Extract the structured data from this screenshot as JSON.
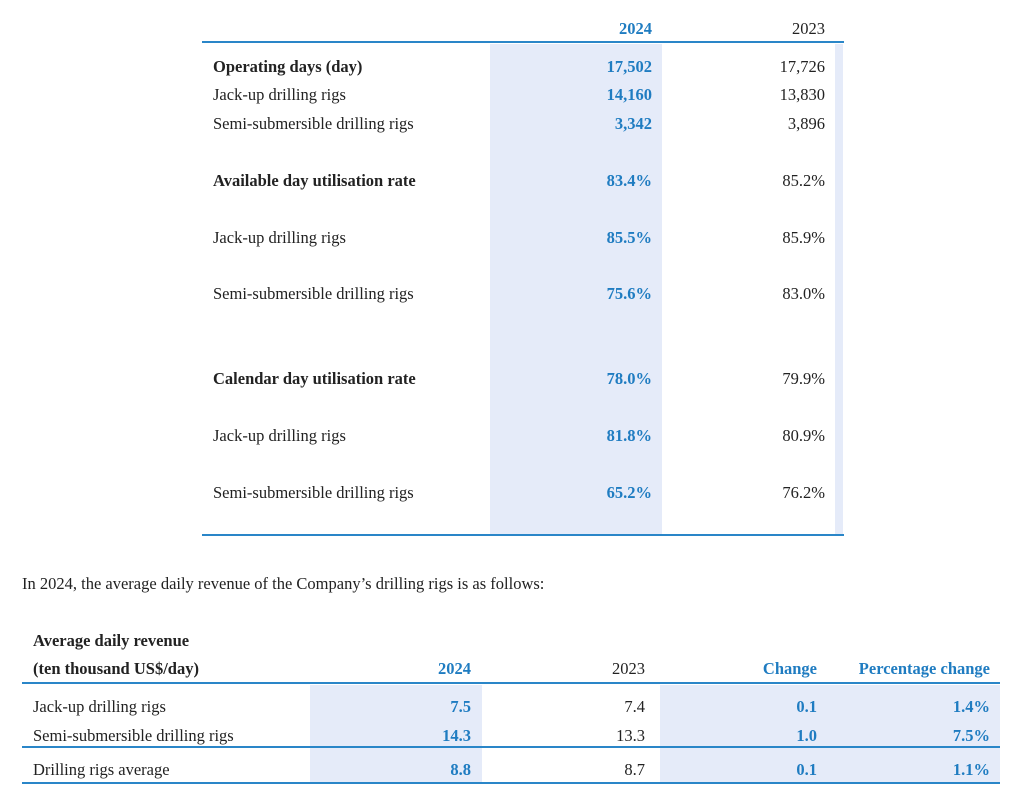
{
  "table1": {
    "headers": [
      "2024",
      "2023"
    ],
    "rows": [
      {
        "label": "Operating days (day)",
        "bold": true,
        "v2024": "17,502",
        "v2023": "17,726"
      },
      {
        "label": "Jack-up drilling rigs",
        "bold": false,
        "v2024": "14,160",
        "v2023": "13,830"
      },
      {
        "label": "Semi-submersible drilling rigs",
        "bold": false,
        "v2024": "3,342",
        "v2023": "3,896"
      },
      {
        "label": "Available day utilisation rate",
        "bold": true,
        "v2024": "83.4%",
        "v2023": "85.2%"
      },
      {
        "label": "Jack-up drilling rigs",
        "bold": false,
        "v2024": "85.5%",
        "v2023": "85.9%"
      },
      {
        "label": "Semi-submersible drilling rigs",
        "bold": false,
        "v2024": "75.6%",
        "v2023": "83.0%"
      },
      {
        "label": "Calendar day utilisation rate",
        "bold": true,
        "v2024": "78.0%",
        "v2023": "79.9%"
      },
      {
        "label": "Jack-up drilling rigs",
        "bold": false,
        "v2024": "81.8%",
        "v2023": "80.9%"
      },
      {
        "label": "Semi-submersible drilling rigs",
        "bold": false,
        "v2024": "65.2%",
        "v2023": "76.2%"
      }
    ]
  },
  "intro_text": "In 2024, the average daily revenue of the Company’s drilling rigs is as follows:",
  "table2": {
    "title_line1": "Average daily revenue",
    "title_line2": "(ten thousand US$/day)",
    "headers": [
      "2024",
      "2023",
      "Change",
      "Percentage change"
    ],
    "rows": [
      {
        "label": "Jack-up drilling rigs",
        "v2024": "7.5",
        "v2023": "7.4",
        "change": "0.1",
        "pct": "1.4%"
      },
      {
        "label": "Semi-submersible drilling rigs",
        "v2024": "14.3",
        "v2023": "13.3",
        "change": "1.0",
        "pct": "7.5%"
      },
      {
        "label": "Drilling rigs average",
        "v2024": "8.8",
        "v2023": "8.7",
        "change": "0.1",
        "pct": "1.1%"
      }
    ]
  },
  "colors": {
    "accent": "#1f7cc1",
    "shade": "#e5ebf9",
    "rule": "#2a86c8"
  }
}
